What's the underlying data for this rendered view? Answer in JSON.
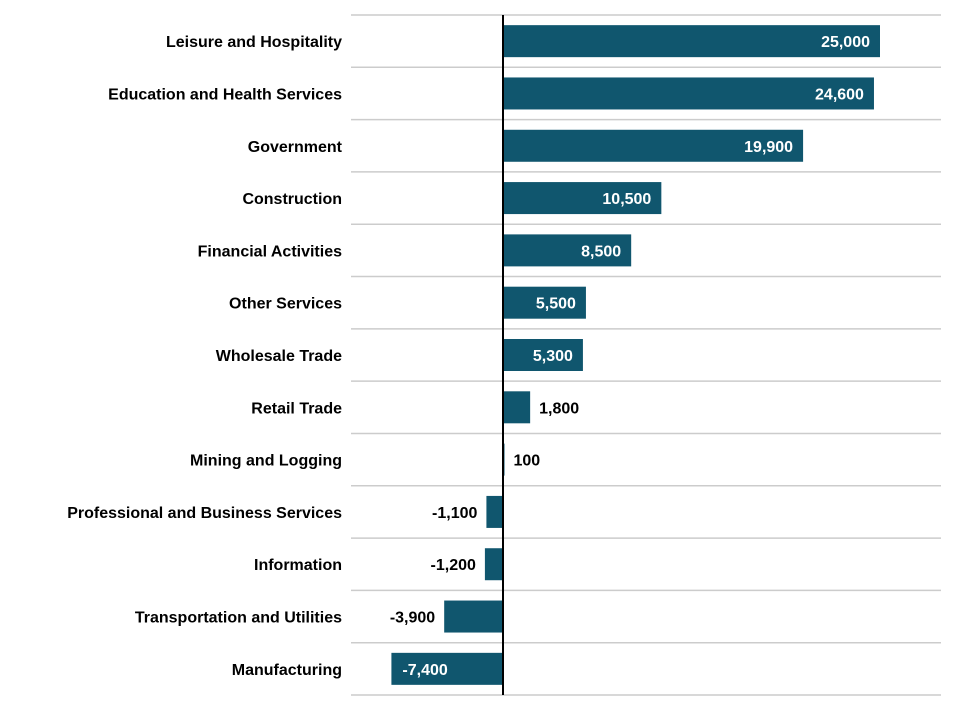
{
  "chart_data": {
    "type": "bar",
    "orientation": "horizontal",
    "categories": [
      "Leisure and Hospitality",
      "Education and Health Services",
      "Government",
      "Construction",
      "Financial Activities",
      "Other Services",
      "Wholesale Trade",
      "Retail Trade",
      "Mining and Logging",
      "Professional and Business Services",
      "Information",
      "Transportation and Utilities",
      "Manufacturing"
    ],
    "values": [
      25000,
      24600,
      19900,
      10500,
      8500,
      5500,
      5300,
      1800,
      100,
      -1100,
      -1200,
      -3900,
      -7400
    ],
    "value_labels": [
      "25,000",
      "24,600",
      "19,900",
      "10,500",
      "8,500",
      "5,500",
      "5,300",
      "1,800",
      "100",
      "-1,100",
      "-1,200",
      "-3,900",
      "-7,400"
    ],
    "title": "",
    "xlabel": "",
    "ylabel": "",
    "xlim": [
      -10000,
      28800
    ],
    "grid": "horizontal separators",
    "legend": "none",
    "colors": {
      "bar": "#10566e",
      "grid": "#cccccc",
      "zero_line": "#000000",
      "label_inside": "#ffffff",
      "label_outside": "#000000"
    }
  }
}
